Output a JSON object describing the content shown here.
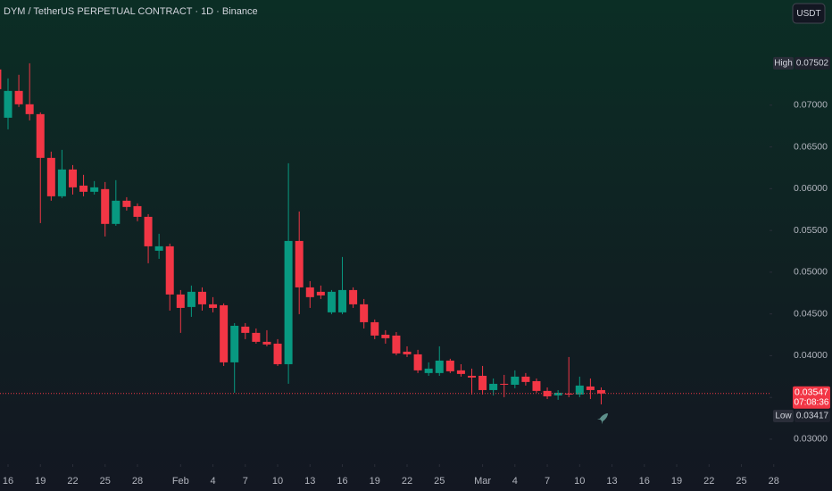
{
  "chart_data": {
    "type": "candlestick",
    "title": "DYM / TetherUS PERPETUAL CONTRACT · 1D · Binance",
    "currency_button": "USDT",
    "up_color": "#089981",
    "down_color": "#f23645",
    "x": [
      15,
      16,
      17,
      18,
      19,
      20,
      21,
      22,
      23,
      24,
      25,
      26,
      27,
      28,
      29,
      30,
      31,
      32,
      33,
      34,
      35,
      36,
      37,
      38,
      39,
      40,
      41,
      42,
      43,
      44,
      45,
      46,
      47,
      48,
      49,
      50,
      51,
      52,
      53,
      54,
      55,
      56,
      57,
      58,
      59,
      60,
      61,
      62,
      63,
      64,
      65,
      66,
      67,
      68,
      69,
      70,
      71
    ],
    "open": [
      0.07428,
      0.0685,
      0.07171,
      0.07011,
      0.06893,
      0.06369,
      0.05909,
      0.0623,
      0.06037,
      0.05963,
      0.05995,
      0.05578,
      0.05856,
      0.05791,
      0.05663,
      0.05257,
      0.0531,
      0.04733,
      0.04583,
      0.04765,
      0.04615,
      0.04604,
      0.0392,
      0.04348,
      0.04273,
      0.04166,
      0.04144,
      0.03898,
      0.05374,
      0.04818,
      0.04765,
      0.04519,
      0.04519,
      0.04786,
      0.04615,
      0.04401,
      0.04251,
      0.04241,
      0.04048,
      0.04016,
      0.03792,
      0.03792,
      0.03941,
      0.03824,
      0.03759,
      0.03759,
      0.03588,
      0.03663,
      0.03652,
      0.03749,
      0.03695,
      0.03578,
      0.03524,
      0.03546,
      0.03535,
      0.03631,
      0.03588
    ],
    "high": [
      0.0746,
      0.07321,
      0.07364,
      0.07502,
      0.06914,
      0.06444,
      0.06465,
      0.06283,
      0.06166,
      0.06091,
      0.0608,
      0.06102,
      0.05898,
      0.05824,
      0.05695,
      0.0546,
      0.05342,
      0.04786,
      0.0484,
      0.04818,
      0.04701,
      0.04626,
      0.0439,
      0.0439,
      0.04326,
      0.04305,
      0.04198,
      0.06305,
      0.05727,
      0.04893,
      0.0484,
      0.04786,
      0.05182,
      0.04818,
      0.04679,
      0.04433,
      0.04305,
      0.04283,
      0.04112,
      0.0407,
      0.0392,
      0.04112,
      0.03963,
      0.03898,
      0.03845,
      0.03877,
      0.03727,
      0.0377,
      0.03824,
      0.03792,
      0.03727,
      0.0362,
      0.03588,
      0.03984,
      0.03749,
      0.03727,
      0.0362
    ],
    "low": [
      0.07139,
      0.06711,
      0.06979,
      0.06818,
      0.05588,
      0.05856,
      0.05888,
      0.0593,
      0.05909,
      0.0593,
      0.05428,
      0.05556,
      0.05738,
      0.0561,
      0.05107,
      0.0516,
      0.0454,
      0.04273,
      0.04465,
      0.0454,
      0.04519,
      0.03877,
      0.03556,
      0.04198,
      0.04144,
      0.04112,
      0.03877,
      0.03663,
      0.04497,
      0.04572,
      0.04679,
      0.04497,
      0.04497,
      0.04572,
      0.04326,
      0.04198,
      0.04144,
      0.04005,
      0.03984,
      0.03792,
      0.03759,
      0.03759,
      0.03792,
      0.03749,
      0.03535,
      0.03535,
      0.03524,
      0.03503,
      0.0361,
      0.03642,
      0.03556,
      0.03481,
      0.03471,
      0.03503,
      0.03503,
      0.03481,
      0.03417
    ],
    "close": [
      0.07192,
      0.07171,
      0.07011,
      0.06893,
      0.06369,
      0.05909,
      0.0623,
      0.06016,
      0.05963,
      0.06016,
      0.05578,
      0.05856,
      0.05781,
      0.05663,
      0.0531,
      0.0531,
      0.04733,
      0.04572,
      0.04765,
      0.04615,
      0.04572,
      0.0392,
      0.04358,
      0.04273,
      0.04166,
      0.04134,
      0.03898,
      0.05374,
      0.04818,
      0.04701,
      0.04722,
      0.04765,
      0.04786,
      0.04615,
      0.04401,
      0.04241,
      0.04209,
      0.04027,
      0.04016,
      0.03824,
      0.03845,
      0.03941,
      0.03813,
      0.03781,
      0.03738,
      0.03588,
      0.03663,
      0.03652,
      0.03749,
      0.03685,
      0.03578,
      0.03513,
      0.03556,
      0.03535,
      0.03642,
      0.03588,
      0.03547
    ],
    "xlim": [
      15.255,
      92.4
    ],
    "xticks": [
      {
        "value": 16,
        "label": "16"
      },
      {
        "value": 19,
        "label": "19"
      },
      {
        "value": 22,
        "label": "22"
      },
      {
        "value": 25,
        "label": "25"
      },
      {
        "value": 28,
        "label": "28"
      },
      {
        "value": 32,
        "label": "Feb"
      },
      {
        "value": 35,
        "label": "4"
      },
      {
        "value": 38,
        "label": "7"
      },
      {
        "value": 41,
        "label": "10"
      },
      {
        "value": 44,
        "label": "13"
      },
      {
        "value": 47,
        "label": "16"
      },
      {
        "value": 50,
        "label": "19"
      },
      {
        "value": 53,
        "label": "22"
      },
      {
        "value": 56,
        "label": "25"
      },
      {
        "value": 60,
        "label": "Mar"
      },
      {
        "value": 63,
        "label": "4"
      },
      {
        "value": 66,
        "label": "7"
      },
      {
        "value": 69,
        "label": "10"
      },
      {
        "value": 72,
        "label": "13"
      },
      {
        "value": 75,
        "label": "16"
      },
      {
        "value": 78,
        "label": "19"
      },
      {
        "value": 81,
        "label": "22"
      },
      {
        "value": 84,
        "label": "25"
      },
      {
        "value": 87,
        "label": "28"
      }
    ],
    "ylim": [
      0.027,
      0.0826
    ],
    "yticks": [
      {
        "value": 0.03,
        "label": "0.03000"
      },
      {
        "value": 0.035,
        "label": "0.03500"
      },
      {
        "value": 0.04,
        "label": "0.04000"
      },
      {
        "value": 0.045,
        "label": "0.04500"
      },
      {
        "value": 0.05,
        "label": "0.05000"
      },
      {
        "value": 0.055,
        "label": "0.05500"
      },
      {
        "value": 0.06,
        "label": "0.06000"
      },
      {
        "value": 0.065,
        "label": "0.06500"
      },
      {
        "value": 0.07,
        "label": "0.07000"
      }
    ],
    "high_marker": {
      "label": "High",
      "value": 0.07502
    },
    "low_marker": {
      "label": "Low",
      "value": 0.03417
    },
    "last_price": {
      "value": 0.03547,
      "countdown": "07:08:36"
    }
  }
}
